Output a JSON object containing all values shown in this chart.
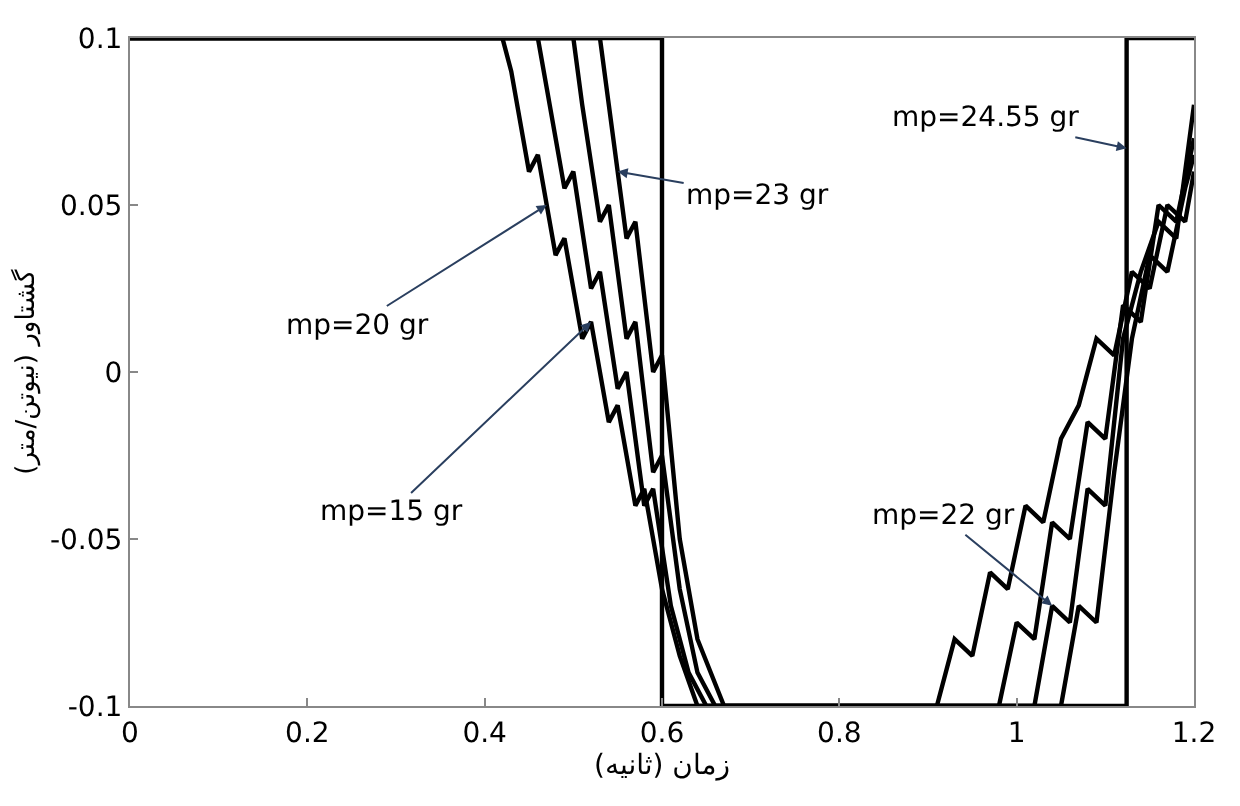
{
  "chart_data": {
    "type": "line",
    "xlabel": "زمان (ثانیه)",
    "ylabel": "گشتاور (نیوتن/متر)",
    "xlim": [
      0,
      1.2
    ],
    "ylim": [
      -0.1,
      0.1
    ],
    "xticks": [
      0,
      0.2,
      0.4,
      0.6,
      0.8,
      1,
      1.2
    ],
    "yticks": [
      -0.1,
      -0.05,
      0,
      0.05,
      0.1
    ],
    "legend": false,
    "marker": "none",
    "line_style": "solid",
    "series": [
      {
        "color": "#000000",
        "x": [
          0,
          0.42,
          0.43,
          0.45,
          0.46,
          0.48,
          0.49,
          0.51,
          0.52,
          0.54,
          0.55,
          0.57,
          0.58,
          0.6,
          0.62,
          0.64,
          0.91,
          0.93,
          0.95,
          0.97,
          0.99,
          1.01,
          1.03,
          1.05,
          1.07,
          1.09,
          1.11,
          1.13,
          1.15,
          1.17,
          1.19,
          1.2
        ],
        "values": [
          0.1,
          0.1,
          0.09,
          0.06,
          0.065,
          0.035,
          0.04,
          0.01,
          0.015,
          -0.015,
          -0.01,
          -0.04,
          -0.035,
          -0.065,
          -0.085,
          -0.1,
          -0.1,
          -0.08,
          -0.085,
          -0.06,
          -0.065,
          -0.04,
          -0.045,
          -0.02,
          -0.01,
          0.01,
          0.005,
          0.03,
          0.025,
          0.05,
          0.045,
          0.06
        ]
      },
      {
        "color": "#000000",
        "x": [
          0,
          0.46,
          0.47,
          0.49,
          0.5,
          0.52,
          0.53,
          0.55,
          0.56,
          0.58,
          0.59,
          0.61,
          0.63,
          0.65,
          0.98,
          1.0,
          1.02,
          1.04,
          1.06,
          1.08,
          1.1,
          1.12,
          1.14,
          1.16,
          1.18,
          1.2
        ],
        "values": [
          0.1,
          0.1,
          0.085,
          0.055,
          0.06,
          0.025,
          0.03,
          -0.005,
          0.0,
          -0.04,
          -0.035,
          -0.07,
          -0.09,
          -0.1,
          -0.1,
          -0.075,
          -0.08,
          -0.045,
          -0.05,
          -0.015,
          -0.02,
          0.02,
          0.015,
          0.05,
          0.045,
          0.07
        ]
      },
      {
        "color": "#000000",
        "x": [
          0,
          0.5,
          0.51,
          0.53,
          0.54,
          0.56,
          0.57,
          0.59,
          0.6,
          0.62,
          0.64,
          0.66,
          1.02,
          1.04,
          1.06,
          1.08,
          1.1,
          1.12,
          1.14,
          1.16,
          1.18,
          1.2
        ],
        "values": [
          0.1,
          0.1,
          0.08,
          0.045,
          0.05,
          0.01,
          0.015,
          -0.03,
          -0.025,
          -0.065,
          -0.09,
          -0.1,
          -0.1,
          -0.07,
          -0.075,
          -0.035,
          -0.04,
          0.01,
          0.03,
          0.045,
          0.04,
          0.08
        ]
      },
      {
        "color": "#000000",
        "x": [
          0,
          0.53,
          0.54,
          0.56,
          0.57,
          0.59,
          0.6,
          0.62,
          0.64,
          0.67,
          1.05,
          1.07,
          1.09,
          1.11,
          1.13,
          1.15,
          1.17,
          1.19,
          1.2
        ],
        "values": [
          0.1,
          0.1,
          0.08,
          0.04,
          0.045,
          0.0,
          0.005,
          -0.05,
          -0.08,
          -0.1,
          -0.1,
          -0.07,
          -0.075,
          -0.03,
          0.01,
          0.035,
          0.03,
          0.055,
          0.065
        ]
      },
      {
        "color": "#000000",
        "x": [
          0,
          0.6,
          0.6,
          1.124,
          1.124,
          1.2
        ],
        "values": [
          0.1,
          0.1,
          -0.1,
          -0.1,
          0.1,
          0.1
        ]
      }
    ],
    "annotations": [
      {
        "text": "mp=24.55 gr",
        "x": 1.124,
        "y": 0.067
      },
      {
        "text": "mp=23 gr",
        "x": 0.55,
        "y": 0.06
      },
      {
        "text": "mp=20 gr",
        "x": 0.47,
        "y": 0.05
      },
      {
        "text": "mp=15 gr",
        "x": 0.52,
        "y": 0.015
      },
      {
        "text": "mp=22 gr",
        "x": 1.04,
        "y": -0.07
      }
    ]
  }
}
